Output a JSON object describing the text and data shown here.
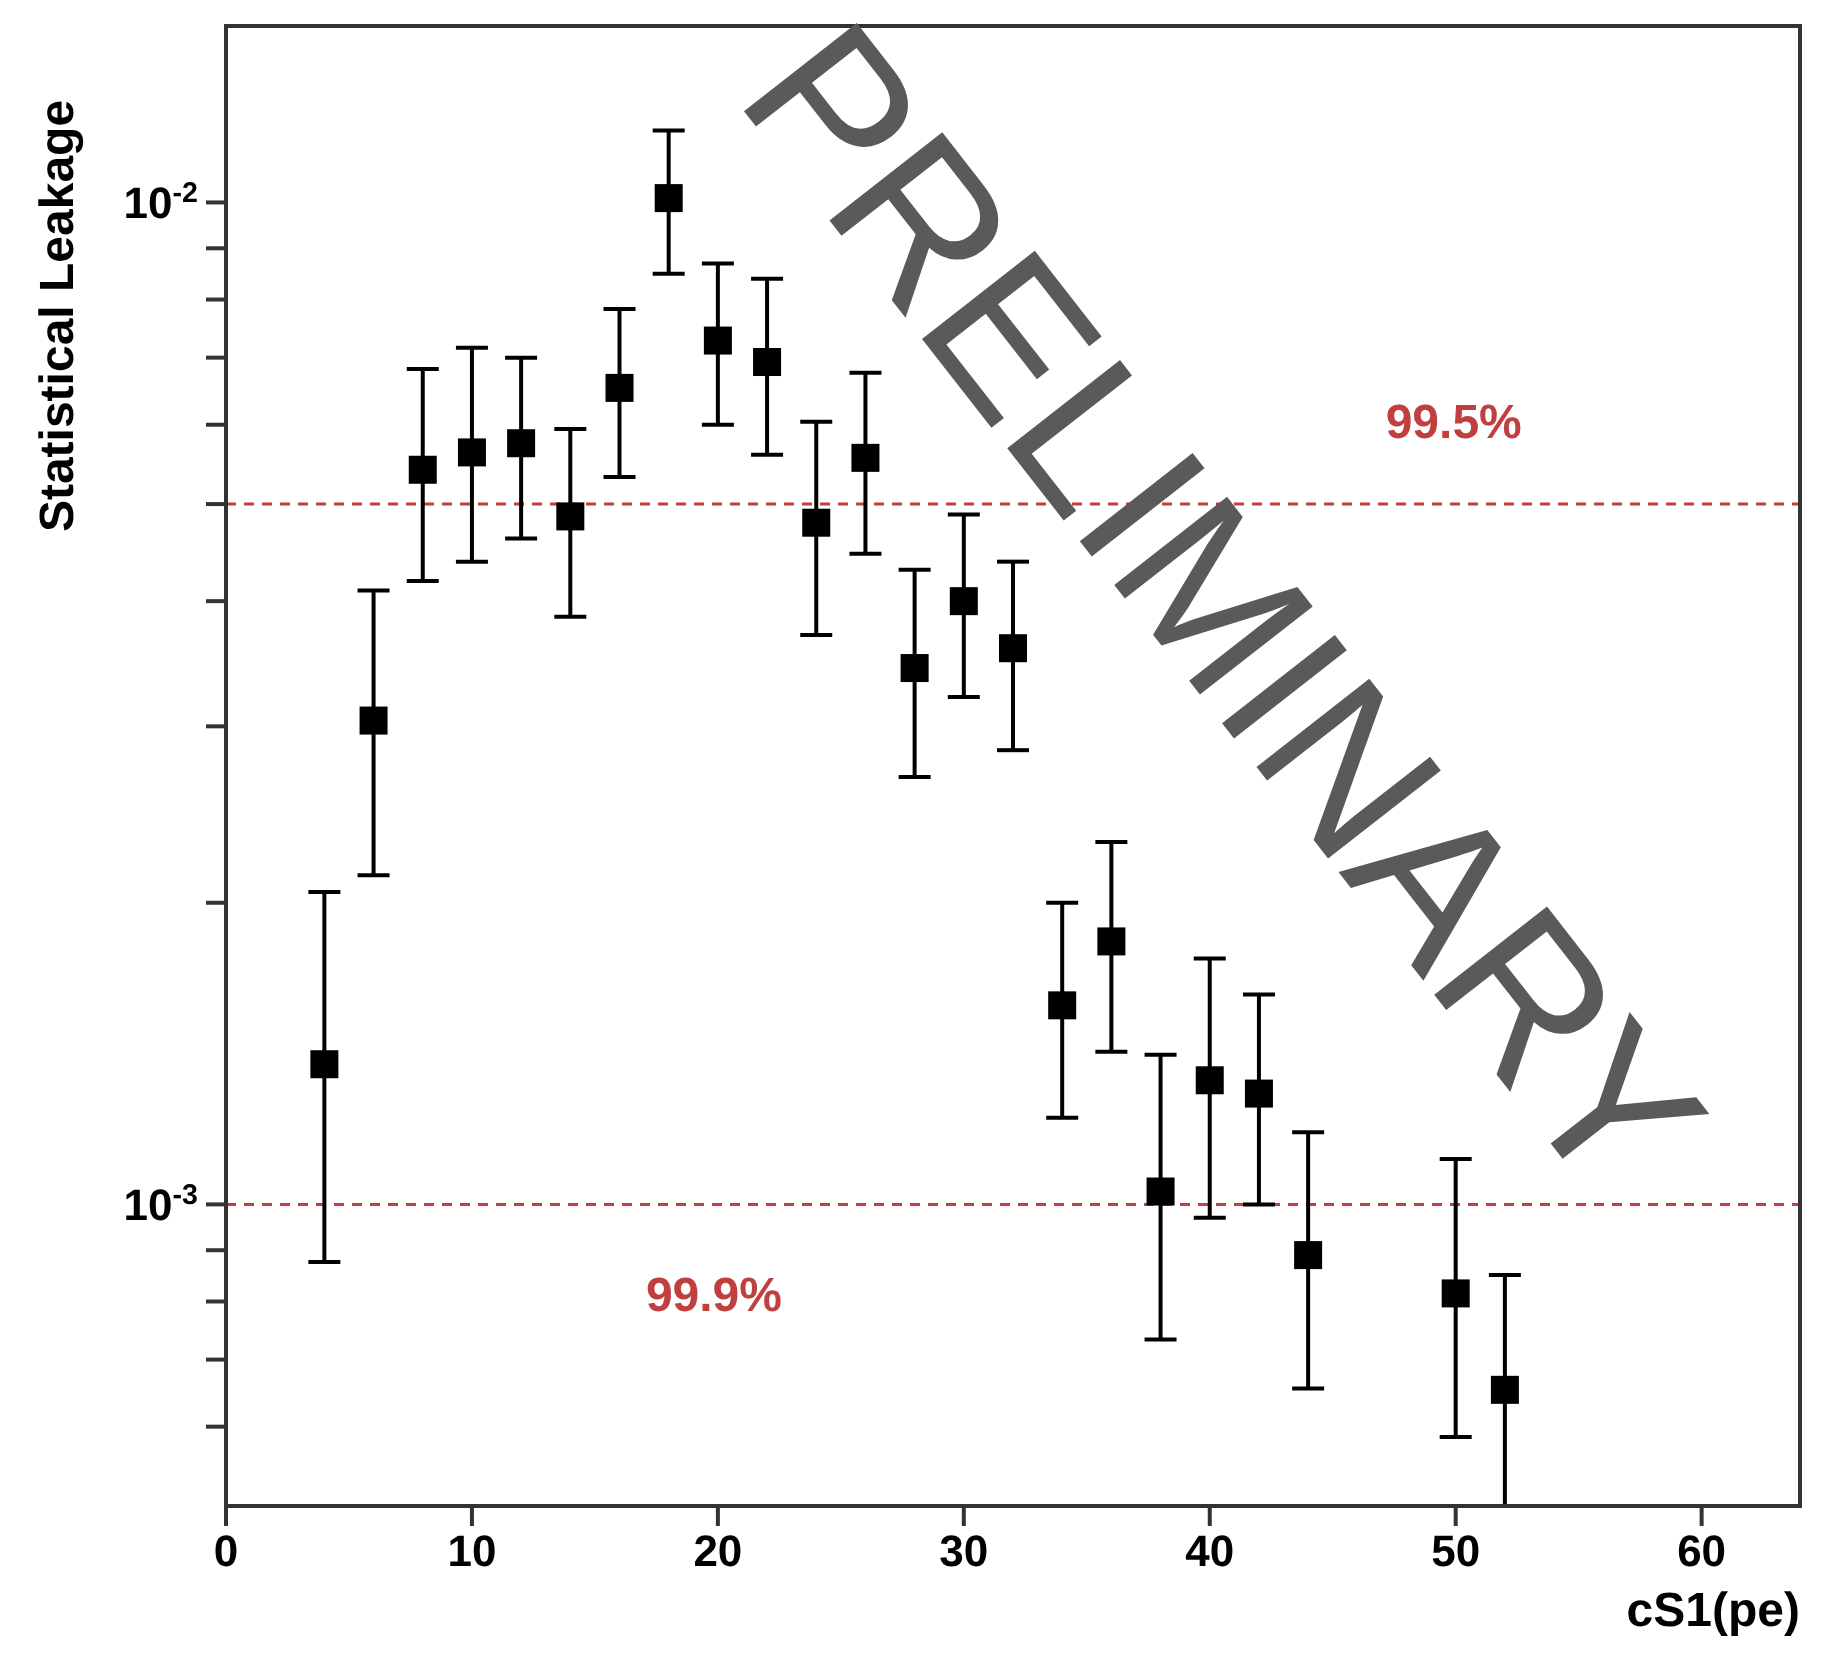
{
  "chart_data": {
    "type": "scatter",
    "xlabel": "cS1(pe)",
    "ylabel": "Statistical Leakage",
    "x": [
      4,
      6,
      8,
      10,
      12,
      14,
      16,
      18,
      20,
      22,
      24,
      26,
      28,
      30,
      32,
      34,
      36,
      38,
      40,
      42,
      44,
      50,
      52
    ],
    "series": [
      {
        "color": "#000000",
        "values": [
          0.00138,
          0.00304,
          0.00541,
          0.00563,
          0.00575,
          0.00486,
          0.00653,
          0.0101,
          0.00728,
          0.00693,
          0.00479,
          0.00556,
          0.00343,
          0.004,
          0.00359,
          0.00158,
          0.00183,
          0.00103,
          0.00133,
          0.00129,
          0.00089,
          0.000815,
          0.000653
        ],
        "errors": [
          [
            0.000876,
            0.00205
          ],
          [
            0.00213,
            0.0041
          ],
          [
            0.00419,
            0.00682
          ],
          [
            0.00438,
            0.00716
          ],
          [
            0.00462,
            0.007
          ],
          [
            0.00386,
            0.00594
          ],
          [
            0.00532,
            0.00783
          ],
          [
            0.00849,
            0.0118
          ],
          [
            0.006,
            0.00869
          ],
          [
            0.0056,
            0.00839
          ],
          [
            0.0037,
            0.00604
          ],
          [
            0.00446,
            0.00676
          ],
          [
            0.00267,
            0.0043
          ],
          [
            0.00321,
            0.00488
          ],
          [
            0.00284,
            0.00438
          ],
          [
            0.00122,
            0.002
          ],
          [
            0.00142,
            0.0023
          ],
          [
            0.000733,
            0.00141
          ],
          [
            0.00097,
            0.00176
          ],
          [
            0.001,
            0.00162
          ],
          [
            0.000655,
            0.00118
          ],
          [
            0.000586,
            0.00111
          ],
          [
            0.0005,
            0.00085
          ]
        ]
      }
    ],
    "xlim": [
      0,
      64
    ],
    "xticks": [
      0,
      10,
      20,
      30,
      40,
      50,
      60
    ],
    "ylim": [
      0.0005,
      0.015
    ],
    "yticks": [
      {
        "value": 0.0006,
        "label": null
      },
      {
        "value": 0.0007,
        "label": null
      },
      {
        "value": 0.0008,
        "label": null
      },
      {
        "value": 0.0009,
        "label": null
      },
      {
        "value": 0.001,
        "label": "10$^{-3}$"
      },
      {
        "value": 0.002,
        "label": null
      },
      {
        "value": 0.003,
        "label": null
      },
      {
        "value": 0.004,
        "label": null
      },
      {
        "value": 0.005,
        "label": null
      },
      {
        "value": 0.006,
        "label": null
      },
      {
        "value": 0.007,
        "label": null
      },
      {
        "value": 0.008,
        "label": null
      },
      {
        "value": 0.009,
        "label": null
      },
      {
        "value": 0.01,
        "label": "10$^{-2}$"
      }
    ],
    "log": "y",
    "grid": false,
    "marker": "square",
    "ref_lines": [
      {
        "axis": "y",
        "value": 0.005,
        "color": "#c04040",
        "line_style": "dashed"
      },
      {
        "axis": "y",
        "value": 0.001,
        "color": "#c04040",
        "line_style": "dashed"
      }
    ],
    "annotations": [
      "PRELIMINARY",
      "99.5%",
      "99.9%"
    ]
  }
}
